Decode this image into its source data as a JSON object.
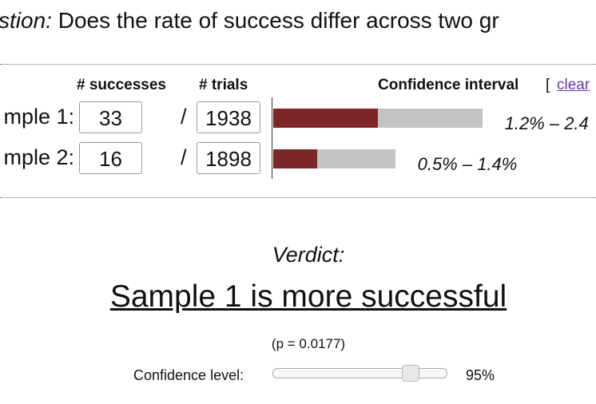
{
  "question": {
    "lead": "stion:",
    "text": "Does the rate of success differ across two gr"
  },
  "headers": {
    "successes": "# successes",
    "trials": "# trials",
    "interval": "Confidence interval",
    "bracket": "[",
    "clear": "clear"
  },
  "rows": [
    {
      "label": "mple 1:",
      "successes": "33",
      "slash": "/",
      "trials": "1938",
      "low": 1.2,
      "high": 2.4,
      "interval_label": "1.2% – 2.4"
    },
    {
      "label": "mple 2:",
      "successes": "16",
      "slash": "/",
      "trials": "1898",
      "low": 0.5,
      "high": 1.4,
      "interval_label": "0.5% – 1.4%"
    }
  ],
  "verdict": {
    "title": "Verdict:",
    "result": "Sample 1 is more successful",
    "p": "(p = 0.0177)"
  },
  "confidence": {
    "label": "Confidence level:",
    "value": "95%"
  }
}
